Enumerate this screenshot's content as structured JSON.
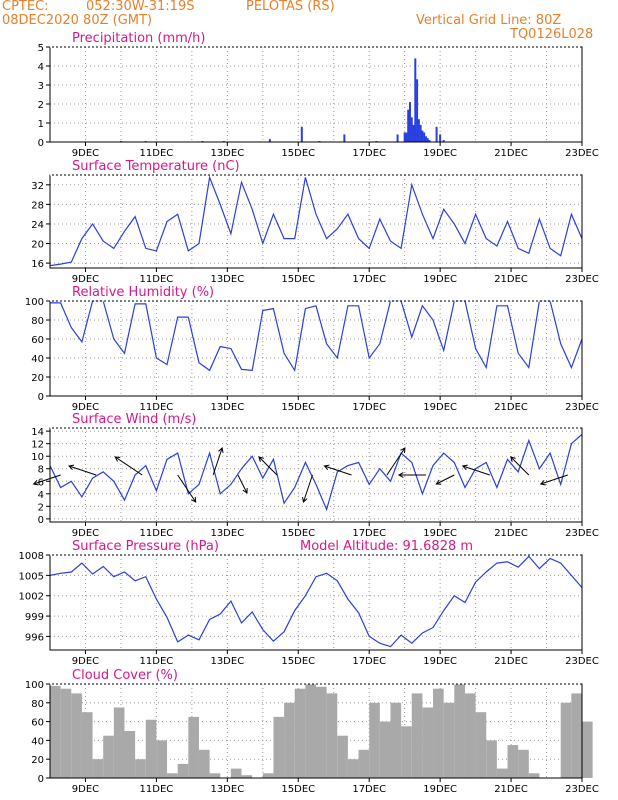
{
  "header": {
    "source": "CPTEC:",
    "coords": "052:30W-31:19S",
    "station": "PELOTAS (RS)",
    "run": "08DEC2020 80Z (GMT)",
    "grid_note": "Vertical Grid Line: 80Z",
    "model_code": "TQ0126L028"
  },
  "colors": {
    "header": "#e87f2a",
    "title": "#d6188c",
    "line": "#2a3fe0",
    "cloud": "#a9a9a9",
    "grid": "#9a9a9a"
  },
  "x_labels": [
    "9DEC",
    "11DEC",
    "13DEC",
    "15DEC",
    "17DEC",
    "19DEC",
    "21DEC",
    "23DEC"
  ],
  "chart_data": [
    {
      "type": "bar",
      "title": "Precipitation (mm/h)",
      "ylim": [
        0,
        5
      ],
      "yticks": [
        0,
        1,
        2,
        3,
        4,
        5
      ],
      "x_unit": "days since 08DEC 00Z",
      "x": [
        2.0,
        2.7,
        4.3,
        4.9,
        6.2,
        7.1,
        7.6,
        8.3,
        9.2,
        9.8,
        10.0,
        10.05,
        10.1,
        10.15,
        10.2,
        10.25,
        10.3,
        10.35,
        10.4,
        10.45,
        10.5,
        10.55,
        10.6,
        10.65,
        10.7,
        10.9,
        11.0,
        11.1
      ],
      "values": [
        0.05,
        0.05,
        0.05,
        0.05,
        0.15,
        0.8,
        0.05,
        0.4,
        0.05,
        0.4,
        0.5,
        0.5,
        1.7,
        2.1,
        1.3,
        0.9,
        4.4,
        3.3,
        1.2,
        0.9,
        0.6,
        0.5,
        0.3,
        0.2,
        0.1,
        0.8,
        0.4,
        0.1
      ]
    },
    {
      "type": "line",
      "title": "Surface Temperature (nC)",
      "ylim": [
        15,
        34
      ],
      "yticks": [
        16,
        20,
        24,
        28,
        32
      ],
      "x": [
        0.0,
        0.3,
        0.6,
        0.9,
        1.2,
        1.5,
        1.8,
        2.1,
        2.4,
        2.7,
        3.0,
        3.3,
        3.6,
        3.9,
        4.2,
        4.5,
        4.8,
        5.1,
        5.4,
        5.7,
        6.0,
        6.3,
        6.6,
        6.9,
        7.2,
        7.5,
        7.8,
        8.1,
        8.4,
        8.7,
        9.0,
        9.3,
        9.6,
        9.9,
        10.2,
        10.5,
        10.8,
        11.1,
        11.4,
        11.7,
        12.0,
        12.3,
        12.6,
        12.9,
        13.2,
        13.5,
        13.8,
        14.1,
        14.4,
        14.7,
        15.0
      ],
      "values": [
        15.5,
        15.8,
        16.2,
        21.0,
        24.0,
        20.5,
        19.0,
        22.5,
        25.5,
        19.0,
        18.5,
        24.5,
        26.0,
        18.5,
        20.0,
        33.5,
        28.0,
        22.0,
        32.5,
        27.0,
        20.0,
        26.0,
        21.0,
        21.0,
        33.5,
        26.0,
        21.0,
        23.0,
        26.0,
        21.0,
        19.0,
        25.0,
        20.5,
        19.0,
        32.0,
        26.0,
        21.0,
        27.0,
        24.0,
        20.0,
        26.0,
        21.0,
        19.5,
        24.5,
        19.0,
        18.0,
        25.0,
        19.0,
        17.5,
        26.0,
        21.0
      ]
    },
    {
      "type": "line",
      "title": "Relative Humidity (%)",
      "ylim": [
        0,
        100
      ],
      "yticks": [
        0,
        20,
        40,
        60,
        80,
        100
      ],
      "x": [
        0.0,
        0.3,
        0.6,
        0.9,
        1.2,
        1.5,
        1.8,
        2.1,
        2.4,
        2.7,
        3.0,
        3.3,
        3.6,
        3.9,
        4.2,
        4.5,
        4.8,
        5.1,
        5.4,
        5.7,
        6.0,
        6.3,
        6.6,
        6.9,
        7.2,
        7.5,
        7.8,
        8.1,
        8.4,
        8.7,
        9.0,
        9.3,
        9.6,
        9.9,
        10.2,
        10.5,
        10.8,
        11.1,
        11.4,
        11.7,
        12.0,
        12.3,
        12.6,
        12.9,
        13.2,
        13.5,
        13.8,
        14.1,
        14.4,
        14.7,
        15.0
      ],
      "values": [
        98,
        98,
        72,
        57,
        100,
        100,
        60,
        45,
        97,
        97,
        40,
        33,
        83,
        83,
        35,
        27,
        52,
        50,
        28,
        27,
        90,
        92,
        45,
        27,
        92,
        95,
        55,
        40,
        95,
        95,
        40,
        55,
        100,
        100,
        62,
        95,
        80,
        48,
        100,
        100,
        50,
        30,
        95,
        95,
        45,
        30,
        100,
        100,
        55,
        30,
        60
      ]
    },
    {
      "type": "line",
      "title": "Surface Wind (m/s)",
      "ylim": [
        -0.5,
        14.5
      ],
      "yticks": [
        0,
        2,
        4,
        6,
        8,
        10,
        12,
        14
      ],
      "x": [
        0.0,
        0.3,
        0.6,
        0.9,
        1.2,
        1.5,
        1.8,
        2.1,
        2.4,
        2.7,
        3.0,
        3.3,
        3.6,
        3.9,
        4.2,
        4.5,
        4.8,
        5.1,
        5.4,
        5.7,
        6.0,
        6.3,
        6.6,
        6.9,
        7.2,
        7.5,
        7.8,
        8.1,
        8.4,
        8.7,
        9.0,
        9.3,
        9.6,
        9.9,
        10.2,
        10.5,
        10.8,
        11.1,
        11.4,
        11.7,
        12.0,
        12.3,
        12.6,
        12.9,
        13.2,
        13.5,
        13.8,
        14.1,
        14.4,
        14.7,
        15.0
      ],
      "values": [
        8.5,
        5.0,
        6.0,
        3.5,
        6.5,
        7.5,
        6.0,
        3.0,
        7.0,
        8.5,
        4.5,
        9.5,
        10.5,
        4.0,
        5.5,
        10.5,
        4.0,
        5.5,
        8.0,
        10.0,
        6.5,
        9.5,
        2.5,
        5.0,
        9.0,
        5.5,
        1.5,
        7.5,
        8.5,
        9.0,
        5.5,
        8.0,
        6.0,
        10.5,
        9.0,
        4.0,
        8.5,
        10.5,
        9.0,
        5.0,
        8.0,
        9.0,
        5.0,
        9.5,
        7.5,
        12.5,
        8.0,
        10.5,
        5.5,
        12.0,
        13.5
      ],
      "barbs": {
        "x": [
          0.3,
          1.3,
          2.6,
          3.6,
          4.6,
          5.3,
          6.4,
          7.4,
          8.5,
          9.5,
          10.6,
          11.4,
          12.4,
          13.5,
          14.6
        ],
        "u": [
          -3,
          -3,
          -3,
          2,
          1,
          1,
          -2,
          -1,
          -3,
          2,
          -3,
          -2,
          -3,
          -2,
          -3
        ],
        "v": [
          -1,
          1,
          2,
          -3,
          3,
          -2,
          2,
          -3,
          1,
          3,
          0,
          -1,
          1,
          2,
          -1
        ]
      }
    },
    {
      "type": "line",
      "title": "Surface Pressure (hPa)",
      "annotation": "Model Altitude: 91.6828 m",
      "ylim": [
        994,
        1008
      ],
      "yticks": [
        996,
        999,
        1002,
        1005,
        1008
      ],
      "x": [
        0.0,
        0.3,
        0.6,
        0.9,
        1.2,
        1.5,
        1.8,
        2.1,
        2.4,
        2.7,
        3.0,
        3.3,
        3.6,
        3.9,
        4.2,
        4.5,
        4.8,
        5.1,
        5.4,
        5.7,
        6.0,
        6.3,
        6.6,
        6.9,
        7.2,
        7.5,
        7.8,
        8.1,
        8.4,
        8.7,
        9.0,
        9.3,
        9.6,
        9.9,
        10.2,
        10.5,
        10.8,
        11.1,
        11.4,
        11.7,
        12.0,
        12.3,
        12.6,
        12.9,
        13.2,
        13.5,
        13.8,
        14.1,
        14.4,
        14.7,
        15.0
      ],
      "values": [
        1005.0,
        1005.3,
        1005.5,
        1006.8,
        1005.2,
        1006.3,
        1004.8,
        1005.5,
        1004.2,
        1004.8,
        1001.5,
        998.8,
        995.2,
        996.2,
        995.5,
        998.5,
        999.3,
        1001.2,
        998.0,
        999.6,
        997.0,
        995.3,
        996.7,
        999.8,
        1002.0,
        1004.8,
        1005.3,
        1004.2,
        1001.5,
        999.5,
        996.0,
        995.0,
        994.5,
        996.2,
        995.0,
        996.5,
        997.3,
        999.8,
        1002.0,
        1001.0,
        1004.0,
        1005.5,
        1006.8,
        1007.0,
        1006.2,
        1007.8,
        1006.0,
        1007.5,
        1006.8,
        1005.0,
        1003.2
      ]
    },
    {
      "type": "bar",
      "title": "Cloud Cover (%)",
      "ylim": [
        0,
        100
      ],
      "yticks": [
        0,
        20,
        40,
        60,
        80,
        100
      ],
      "x": [
        0.0,
        0.3,
        0.6,
        0.9,
        1.2,
        1.5,
        1.8,
        2.1,
        2.4,
        2.7,
        3.0,
        3.3,
        3.6,
        3.9,
        4.2,
        4.5,
        4.8,
        5.1,
        5.4,
        5.7,
        6.0,
        6.3,
        6.6,
        6.9,
        7.2,
        7.5,
        7.8,
        8.1,
        8.4,
        8.7,
        9.0,
        9.3,
        9.6,
        9.9,
        10.2,
        10.5,
        10.8,
        11.1,
        11.4,
        11.7,
        12.0,
        12.3,
        12.6,
        12.9,
        13.2,
        13.5,
        13.8,
        14.1,
        14.4,
        14.7,
        15.0
      ],
      "values": [
        98,
        95,
        90,
        70,
        20,
        45,
        75,
        50,
        20,
        62,
        40,
        5,
        15,
        65,
        30,
        5,
        0,
        10,
        3,
        0,
        5,
        65,
        80,
        95,
        100,
        97,
        90,
        45,
        20,
        30,
        80,
        60,
        80,
        55,
        90,
        75,
        95,
        80,
        100,
        90,
        70,
        40,
        10,
        35,
        30,
        5,
        0,
        0,
        80,
        90,
        60
      ]
    }
  ]
}
